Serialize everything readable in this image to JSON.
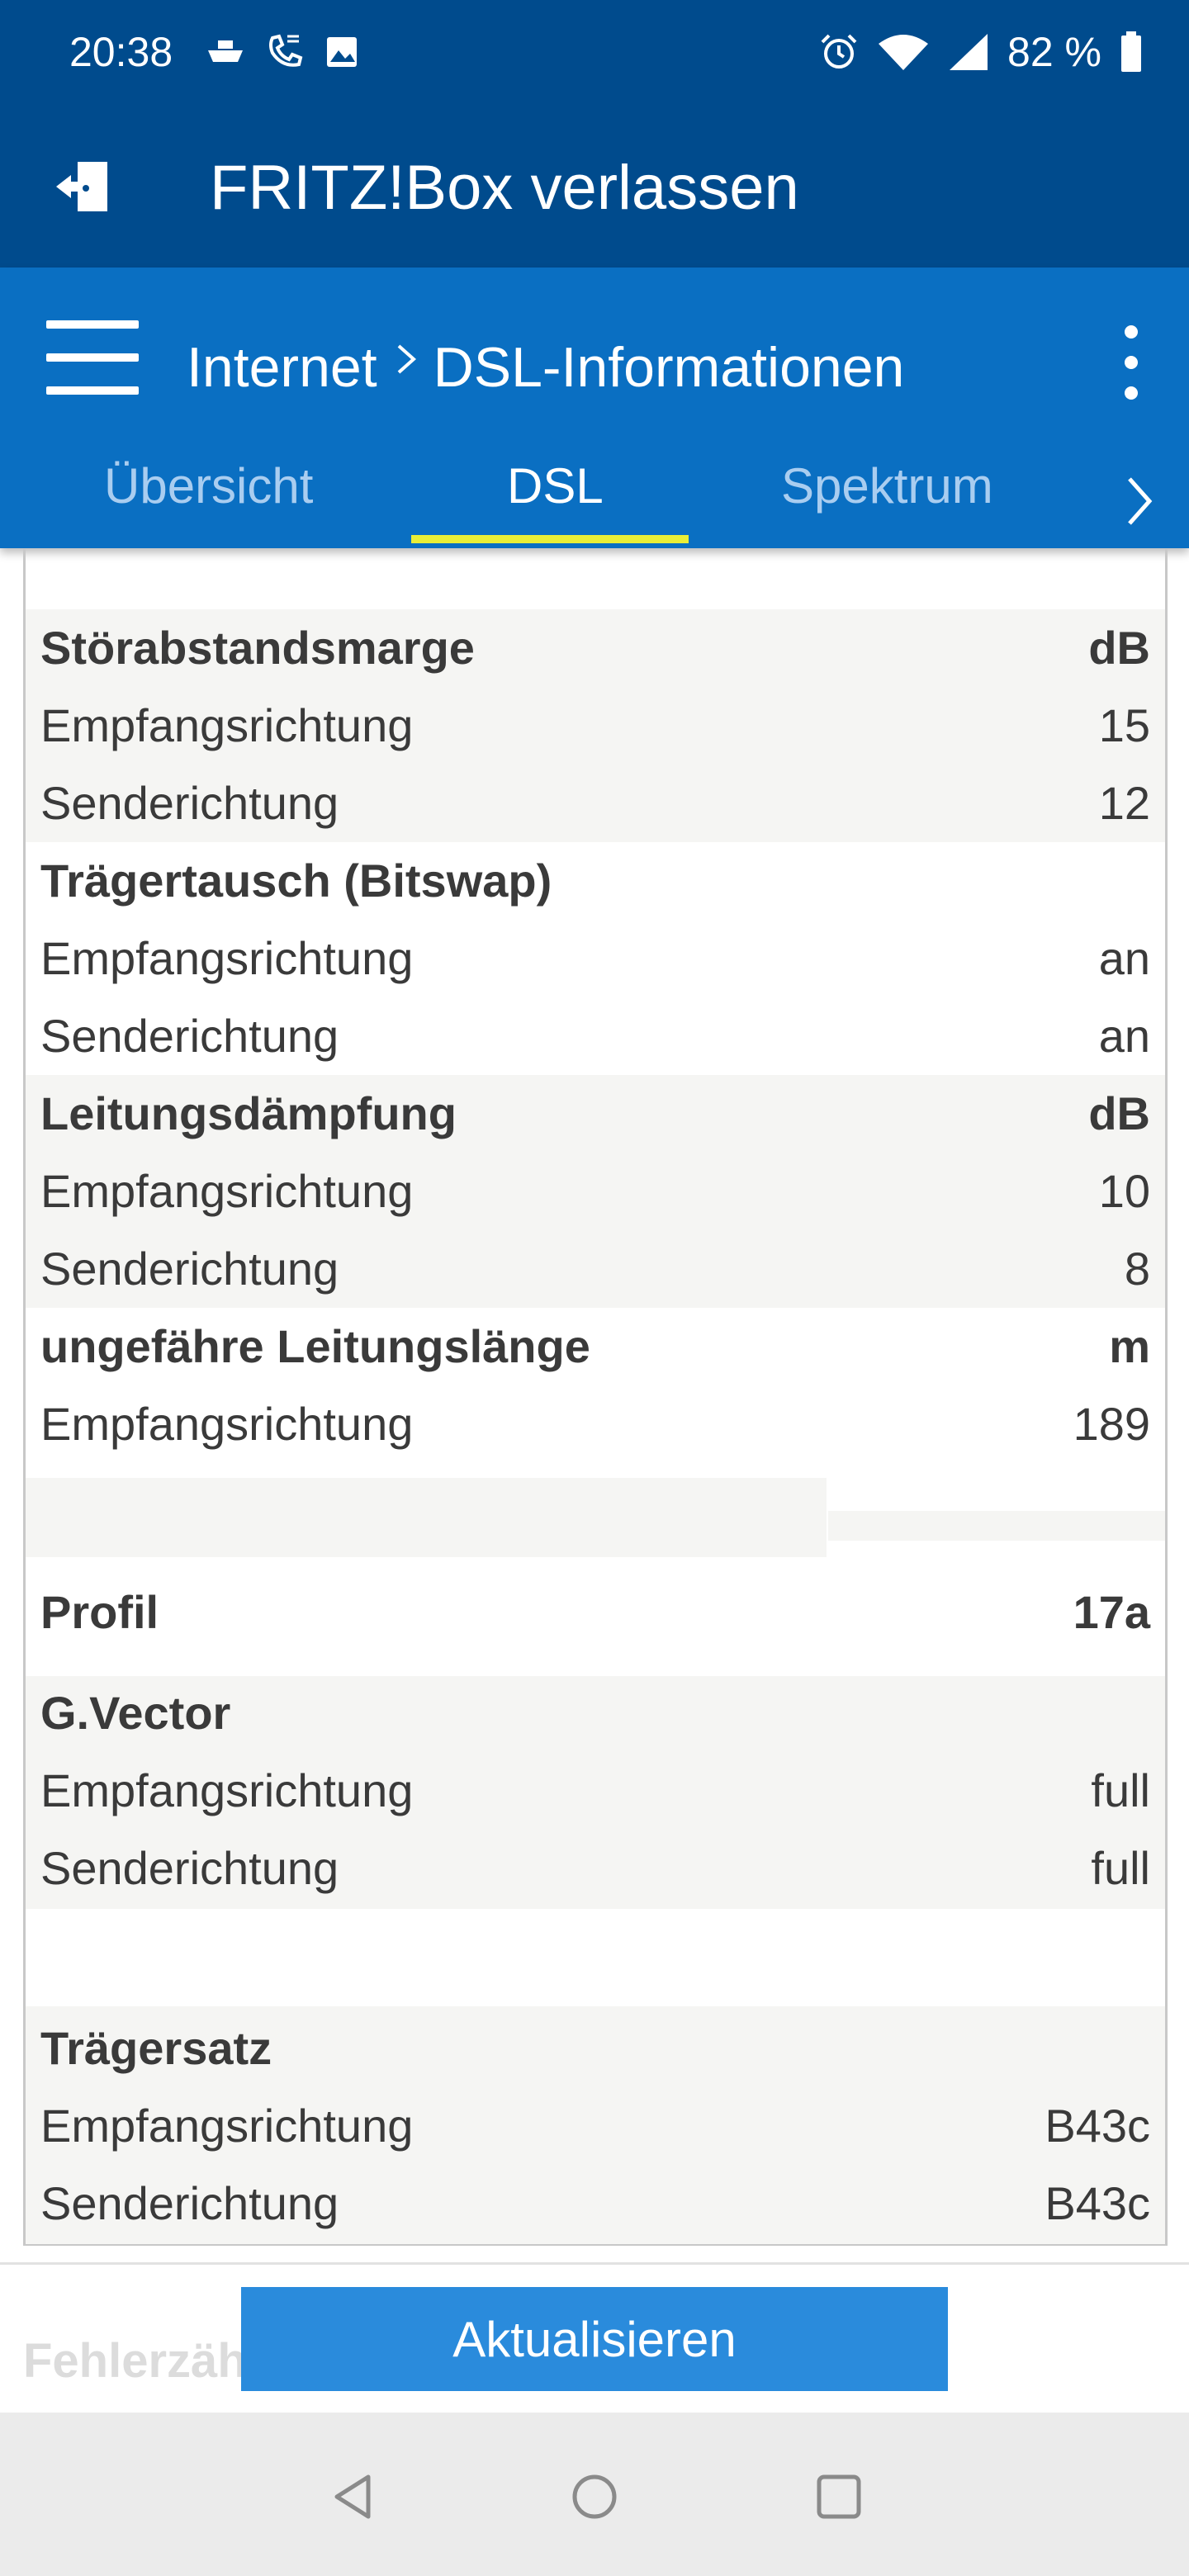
{
  "status_bar": {
    "time": "20:38",
    "battery_percent": "82 %",
    "icons_left": [
      "ship-icon",
      "phone-call-icon",
      "image-icon"
    ],
    "icons_right": [
      "alarm-icon",
      "wifi-icon",
      "signal-icon",
      "battery-icon"
    ]
  },
  "app_bar": {
    "title": "FRITZ!Box verlassen",
    "exit_icon": "exit-icon"
  },
  "nav": {
    "breadcrumb": [
      "Internet",
      "DSL-Informationen"
    ],
    "tabs": [
      {
        "label": "Übersicht",
        "active": false
      },
      {
        "label": "DSL",
        "active": true
      },
      {
        "label": "Spektrum",
        "active": false
      }
    ],
    "indicator_color": "#e9ee37"
  },
  "sections": {
    "stoerabstand": {
      "title": "Störabstandsmarge",
      "unit": "dB",
      "rows": [
        {
          "label": "Empfangsrichtung",
          "value": "15"
        },
        {
          "label": "Senderichtung",
          "value": "12"
        }
      ]
    },
    "bitswap": {
      "title": "Trägertausch (Bitswap)",
      "unit": "",
      "rows": [
        {
          "label": "Empfangsrichtung",
          "value": "an"
        },
        {
          "label": "Senderichtung",
          "value": "an"
        }
      ]
    },
    "daempfung": {
      "title": "Leitungsdämpfung",
      "unit": "dB",
      "rows": [
        {
          "label": "Empfangsrichtung",
          "value": "10"
        },
        {
          "label": "Senderichtung",
          "value": "8"
        }
      ]
    },
    "laenge": {
      "title": "ungefähre Leitungslänge",
      "unit": "m",
      "rows": [
        {
          "label": "Empfangsrichtung",
          "value": "189"
        }
      ]
    },
    "profil": {
      "title": "Profil",
      "value": "17a"
    },
    "gvector": {
      "title": "G.Vector",
      "rows": [
        {
          "label": "Empfangsrichtung",
          "value": "full"
        },
        {
          "label": "Senderichtung",
          "value": "full"
        }
      ]
    },
    "traegersatz": {
      "title": "Trägersatz",
      "rows": [
        {
          "label": "Empfangsrichtung",
          "value": "B43c"
        },
        {
          "label": "Senderichtung",
          "value": "B43c"
        }
      ]
    }
  },
  "bottom": {
    "partial_heading": "Fehlerzäh",
    "refresh_label": "Aktualisieren"
  },
  "colors": {
    "appbar": "#004b8d",
    "navbar": "#0a6fc2",
    "button": "#2a8bdc",
    "row_shade": "#f5f5f3"
  }
}
